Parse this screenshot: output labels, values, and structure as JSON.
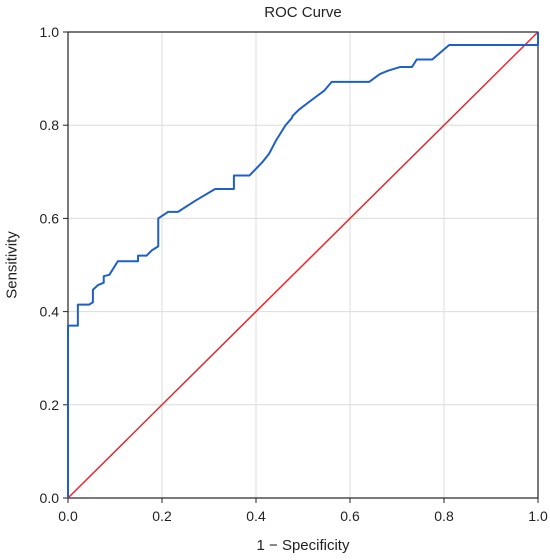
{
  "chart_data": {
    "type": "line",
    "title": "ROC Curve",
    "xlabel": "1 − Specificity",
    "ylabel": "Sensitivity",
    "xlim": [
      0,
      1
    ],
    "ylim": [
      0,
      1
    ],
    "xticks": [
      "0.0",
      "0.2",
      "0.4",
      "0.6",
      "0.8",
      "1.0"
    ],
    "yticks": [
      "0.0",
      "0.2",
      "0.4",
      "0.6",
      "0.8",
      "1.0"
    ],
    "grid": true,
    "legend": "none",
    "colors": {
      "roc": "#1f5fc8",
      "reference": "#e8262d"
    },
    "series": [
      {
        "x": [
          0,
          0,
          0.001,
          0.001,
          0.021,
          0.021,
          0.045,
          0.053,
          0.053,
          0.064,
          0.076,
          0.076,
          0.088,
          0.106,
          0.149,
          0.149,
          0.167,
          0.179,
          0.192,
          0.192,
          0.213,
          0.234,
          0.271,
          0.313,
          0.353,
          0.353,
          0.386,
          0.413,
          0.428,
          0.443,
          0.463,
          0.476,
          0.478,
          0.491,
          0.517,
          0.545,
          0.561,
          0.641,
          0.664,
          0.681,
          0.707,
          0.732,
          0.742,
          0.775,
          0.811,
          1.0,
          1.0
        ],
        "y": [
          0,
          0.37,
          0.37,
          0.37,
          0.37,
          0.415,
          0.415,
          0.42,
          0.447,
          0.457,
          0.462,
          0.476,
          0.479,
          0.508,
          0.508,
          0.52,
          0.52,
          0.532,
          0.54,
          0.6,
          0.614,
          0.614,
          0.638,
          0.663,
          0.663,
          0.692,
          0.692,
          0.72,
          0.739,
          0.768,
          0.8,
          0.815,
          0.82,
          0.833,
          0.853,
          0.874,
          0.893,
          0.893,
          0.91,
          0.917,
          0.925,
          0.925,
          0.941,
          0.941,
          0.972,
          0.972,
          1.0
        ]
      },
      {
        "x": [
          0,
          1
        ],
        "y": [
          0,
          1
        ]
      }
    ]
  }
}
